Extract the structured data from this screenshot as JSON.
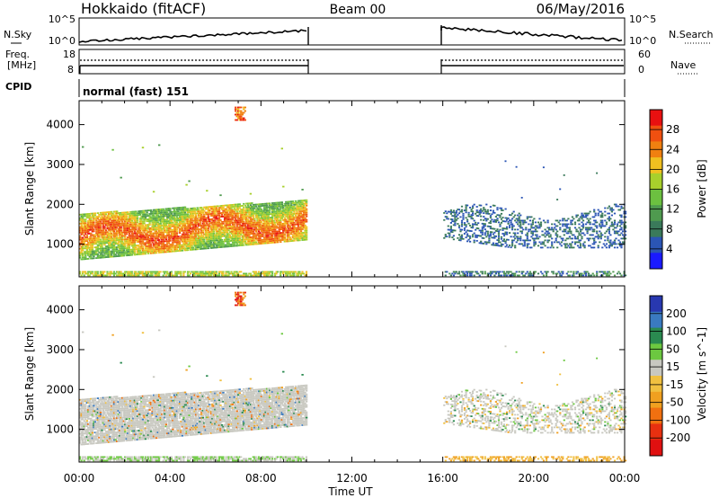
{
  "header": {
    "radar": "Hokkaido (fitACF)",
    "beam": "Beam 00",
    "date": "06/May/2016"
  },
  "noise_panel": {
    "left_label": "N.Sky",
    "right_label": "N.Search",
    "left_ticks": [
      "10^5",
      "10^0"
    ],
    "right_ticks": [
      "10^5",
      "10^0"
    ]
  },
  "freq_panel": {
    "left_label_top": "Freq.",
    "left_label_unit": "[MHz]",
    "left_ticks": [
      "18",
      "8"
    ],
    "right_label": "Nave",
    "right_ticks": [
      "60",
      "0"
    ]
  },
  "cpid": {
    "label": "CPID",
    "value": "normal (fast) 151"
  },
  "x_axis": {
    "title": "Time UT",
    "ticks": [
      "00:00",
      "04:00",
      "08:00",
      "12:00",
      "16:00",
      "20:00",
      "00:00"
    ]
  },
  "colors": {
    "power_scale": [
      "#1a1aff",
      "#2b55b5",
      "#3a7a5a",
      "#4f9a4f",
      "#6cc040",
      "#a8d02c",
      "#f0c020",
      "#f08010",
      "#f05010",
      "#e81010"
    ],
    "velocity_scale": [
      "#2838b0",
      "#3a7ac0",
      "#2a8a50",
      "#6cc840",
      "#c8c8c0",
      "#f0c040",
      "#f0a020",
      "#f07010",
      "#e83010",
      "#e01010"
    ]
  },
  "chart_data": [
    {
      "type": "heatmap",
      "title": "Power",
      "ylabel": "Slant Range [km]",
      "xlabel": "",
      "xlim": [
        "00:00",
        "24:00"
      ],
      "ylim": [
        180,
        4600
      ],
      "y_ticks": [
        "1000",
        "2000",
        "3000",
        "4000"
      ],
      "colorbar": {
        "label": "Power [dB]",
        "ticks": [
          "4",
          "8",
          "12",
          "16",
          "20",
          "24",
          "28"
        ],
        "range": [
          0,
          30
        ]
      },
      "data_gap": [
        "10:00",
        "16:00"
      ],
      "features": [
        {
          "time": "00:00-10:00",
          "range_km": "600-1800",
          "power_db": "16-28",
          "peak_band_km": "1200-1600"
        },
        {
          "time": "16:00-24:00",
          "range_km": "900-2000",
          "power_db": "4-8"
        },
        {
          "time": "06:50-07:20",
          "range_km": "4100-4450",
          "power_db": "20-28"
        }
      ]
    },
    {
      "type": "heatmap",
      "title": "Velocity",
      "ylabel": "Slant Range [km]",
      "xlabel": "Time UT",
      "xlim": [
        "00:00",
        "24:00"
      ],
      "ylim": [
        180,
        4600
      ],
      "y_ticks": [
        "1000",
        "2000",
        "3000",
        "4000"
      ],
      "colorbar": {
        "label": "Velocity [m s^-1]",
        "ticks": [
          "200",
          "100",
          "50",
          "15",
          "-15",
          "-50",
          "-100",
          "-200"
        ],
        "range": [
          -250,
          250
        ]
      },
      "data_gap": [
        "10:00",
        "16:00"
      ],
      "features": [
        {
          "time": "00:00-10:00",
          "range_km": "600-1800",
          "velocity_ms": "-15-15"
        },
        {
          "time": "16:00-24:00",
          "range_km": "1000-1700",
          "velocity_ms": "-15-15"
        }
      ]
    }
  ]
}
